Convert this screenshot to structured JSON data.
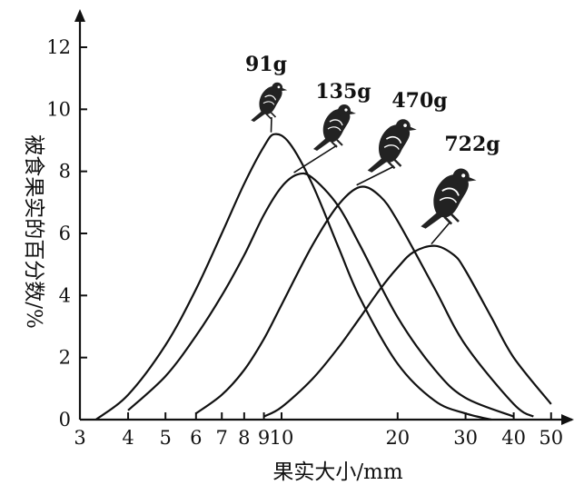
{
  "chart_data": {
    "type": "line",
    "xlabel": "果实大小/mm",
    "ylabel": "被食果实的百分数/%",
    "x_scale": "log",
    "xlim": [
      3,
      55
    ],
    "ylim": [
      0,
      12.5
    ],
    "x_ticks": [
      3,
      4,
      5,
      6,
      7,
      8,
      9,
      10,
      20,
      30,
      40,
      50
    ],
    "y_ticks": [
      0,
      2,
      4,
      6,
      8,
      10,
      12
    ],
    "series": [
      {
        "name": "91g",
        "x": [
          3.3,
          4,
          5,
          6,
          7,
          8,
          9,
          9.6,
          10.5,
          12,
          14,
          16,
          20,
          25,
          30,
          35
        ],
        "y": [
          0,
          0.8,
          2.4,
          4.2,
          6.0,
          7.6,
          8.8,
          9.2,
          8.9,
          7.6,
          5.6,
          3.9,
          1.8,
          0.6,
          0.2,
          0
        ]
      },
      {
        "name": "135g",
        "x": [
          4,
          5,
          6,
          7,
          8,
          9,
          10,
          11,
          12,
          14,
          16,
          20,
          25,
          30,
          40
        ],
        "y": [
          0.3,
          1.4,
          2.7,
          4.0,
          5.3,
          6.6,
          7.5,
          7.9,
          7.8,
          6.9,
          5.6,
          3.3,
          1.6,
          0.7,
          0.1
        ]
      },
      {
        "name": "470g",
        "x": [
          6,
          7,
          8,
          9,
          10,
          12,
          14,
          16,
          18,
          20,
          25,
          30,
          40,
          45
        ],
        "y": [
          0.2,
          0.8,
          1.6,
          2.6,
          3.7,
          5.6,
          6.9,
          7.5,
          7.2,
          6.4,
          4.2,
          2.4,
          0.5,
          0.1
        ]
      },
      {
        "name": "722g",
        "x": [
          9,
          10,
          12,
          14,
          16,
          18,
          20,
          22,
          25,
          28,
          30,
          35,
          40,
          50
        ],
        "y": [
          0.1,
          0.4,
          1.3,
          2.3,
          3.3,
          4.2,
          4.9,
          5.4,
          5.6,
          5.3,
          4.8,
          3.3,
          2.0,
          0.5
        ]
      }
    ]
  },
  "birds": [
    {
      "label": "91g",
      "icon": "bird-icon"
    },
    {
      "label": "135g",
      "icon": "bird-icon"
    },
    {
      "label": "470g",
      "icon": "bird-icon"
    },
    {
      "label": "722g",
      "icon": "bird-icon"
    }
  ]
}
